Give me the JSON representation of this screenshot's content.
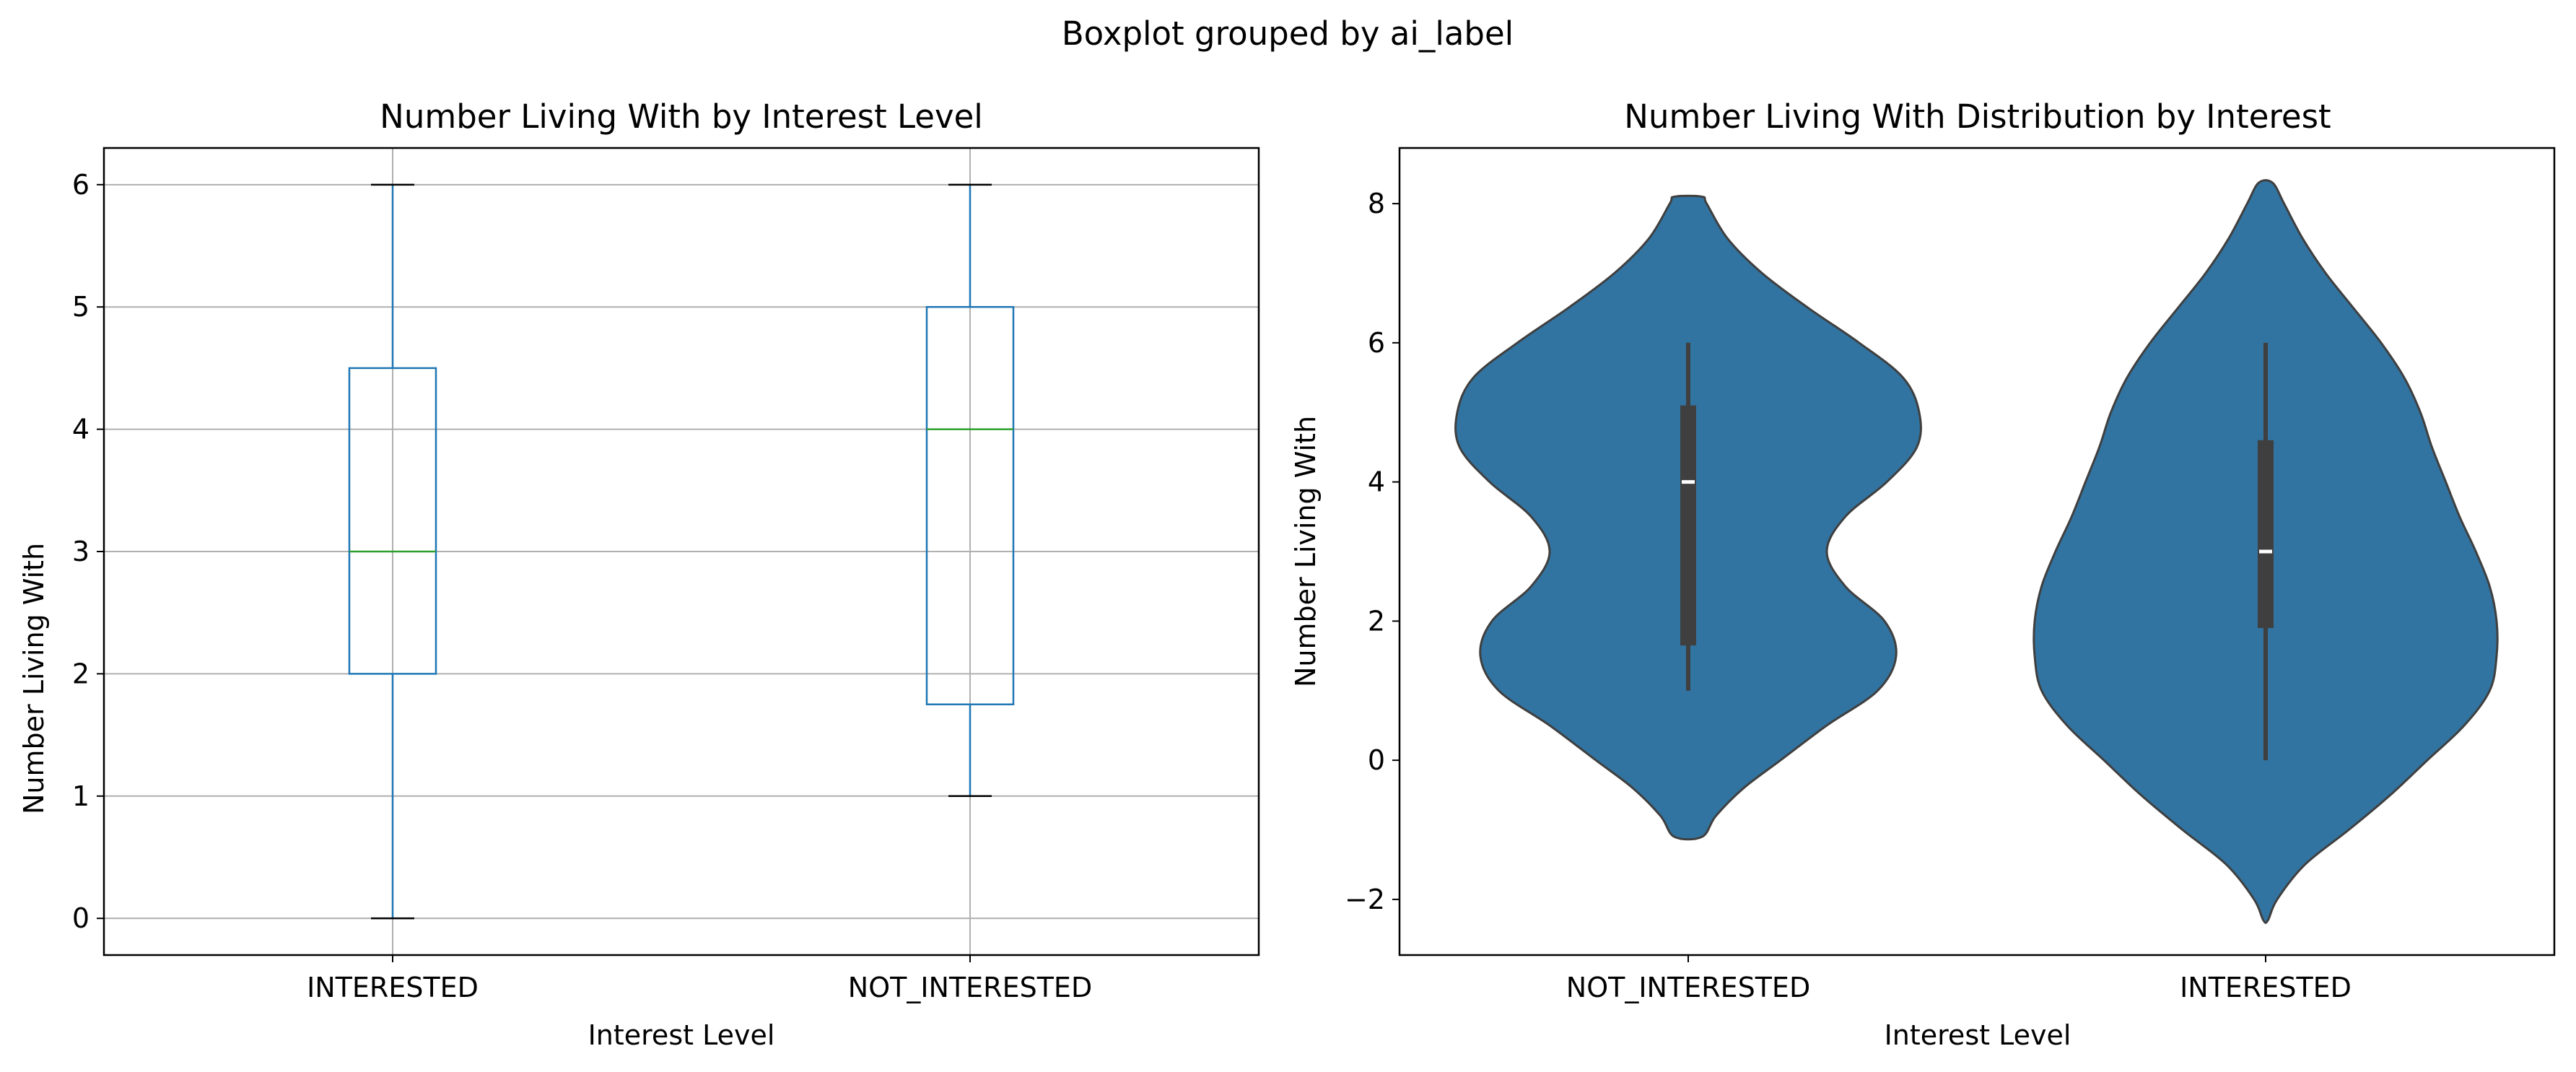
{
  "figure": {
    "suptitle": "Boxplot grouped by ai_label"
  },
  "chart_data": [
    {
      "type": "boxplot",
      "title": "Number Living With by Interest Level",
      "xlabel": "Interest Level",
      "ylabel": "Number Living With",
      "categories": [
        "INTERESTED",
        "NOT_INTERESTED"
      ],
      "ylim": [
        -0.3,
        6.3
      ],
      "yticks": [
        "0",
        "1",
        "2",
        "3",
        "4",
        "5",
        "6"
      ],
      "grid": true,
      "boxes": [
        {
          "category": "INTERESTED",
          "whisker_low": 0,
          "q1": 2,
          "median": 3,
          "q3": 4.5,
          "whisker_high": 6
        },
        {
          "category": "NOT_INTERESTED",
          "whisker_low": 1,
          "q1": 1.75,
          "median": 4,
          "q3": 5,
          "whisker_high": 6
        }
      ],
      "colors": {
        "box": "#1f77b4",
        "median": "#2ca02c",
        "cap": "#000000",
        "grid": "#b0b0b0"
      }
    },
    {
      "type": "violin",
      "title": "Number Living With Distribution by Interest",
      "xlabel": "Interest Level",
      "ylabel": "Number Living With",
      "categories": [
        "NOT_INTERESTED",
        "INTERESTED"
      ],
      "ylim": [
        -2.8,
        8.8
      ],
      "yticks": [
        "−2",
        "0",
        "2",
        "4",
        "6",
        "8"
      ],
      "grid": false,
      "violins": [
        {
          "category": "NOT_INTERESTED",
          "min": 1,
          "q1": 1.65,
          "median": 4,
          "q3": 5.1,
          "max": 6,
          "density_profile": [
            [
              -1.1,
              0.06
            ],
            [
              -0.8,
              0.12
            ],
            [
              -0.4,
              0.24
            ],
            [
              0.0,
              0.4
            ],
            [
              0.5,
              0.6
            ],
            [
              1.0,
              0.82
            ],
            [
              1.5,
              0.9
            ],
            [
              2.0,
              0.85
            ],
            [
              2.5,
              0.68
            ],
            [
              3.0,
              0.6
            ],
            [
              3.5,
              0.68
            ],
            [
              4.0,
              0.86
            ],
            [
              4.5,
              0.99
            ],
            [
              5.0,
              1.0
            ],
            [
              5.5,
              0.93
            ],
            [
              6.0,
              0.74
            ],
            [
              6.5,
              0.52
            ],
            [
              7.0,
              0.32
            ],
            [
              7.5,
              0.17
            ],
            [
              8.0,
              0.08
            ],
            [
              8.1,
              0.06
            ]
          ]
        },
        {
          "category": "INTERESTED",
          "min": 0,
          "q1": 1.9,
          "median": 3,
          "q3": 4.6,
          "max": 6,
          "density_profile": [
            [
              -2.3,
              0.01
            ],
            [
              -2.0,
              0.05
            ],
            [
              -1.5,
              0.17
            ],
            [
              -1.0,
              0.36
            ],
            [
              -0.5,
              0.54
            ],
            [
              0.0,
              0.7
            ],
            [
              0.5,
              0.86
            ],
            [
              1.0,
              0.97
            ],
            [
              1.5,
              1.0
            ],
            [
              2.0,
              1.0
            ],
            [
              2.5,
              0.97
            ],
            [
              3.0,
              0.91
            ],
            [
              3.5,
              0.84
            ],
            [
              4.0,
              0.78
            ],
            [
              4.5,
              0.72
            ],
            [
              5.0,
              0.67
            ],
            [
              5.5,
              0.6
            ],
            [
              6.0,
              0.5
            ],
            [
              6.5,
              0.38
            ],
            [
              7.0,
              0.26
            ],
            [
              7.5,
              0.16
            ],
            [
              8.0,
              0.08
            ],
            [
              8.3,
              0.03
            ]
          ]
        }
      ],
      "colors": {
        "fill": "#3274a1",
        "edge": "#3f3f3f",
        "inner": "#3f3f3f",
        "median": "#ffffff"
      }
    }
  ]
}
